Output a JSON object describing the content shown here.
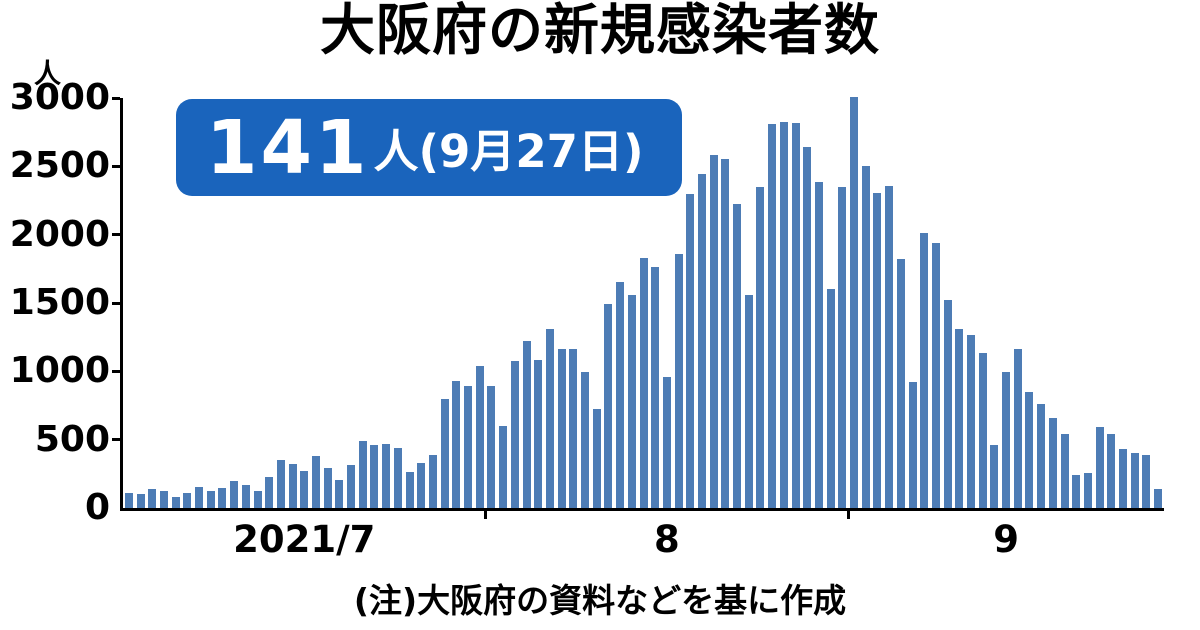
{
  "title": "大阪府の新規感染者数",
  "y_axis": {
    "unit_label": "人"
  },
  "badge": {
    "value": "141",
    "suffix": "人(9月27日)"
  },
  "footer_note": "(注)大阪府の資料などを基に作成",
  "colors": {
    "bar": "#4d7cb5",
    "badge_bg": "#1a64bc",
    "badge_text": "#ffffff",
    "axis": "#000000",
    "text": "#000000",
    "background": "#ffffff"
  },
  "chart_data": {
    "type": "bar",
    "title": "大阪府の新規感染者数",
    "ylabel": "人",
    "xlabel": "",
    "ylim": [
      0,
      3000
    ],
    "yticks": [
      0,
      500,
      1000,
      1500,
      2000,
      2500,
      3000
    ],
    "grid": false,
    "legend": false,
    "annotation": "141人(9月27日)",
    "note": "(注)大阪府の資料などを基に作成",
    "x_months": [
      {
        "label": "2021/7",
        "daily_values": [
          108,
          104,
          140,
          123,
          77,
          108,
          151,
          125,
          143,
          200,
          167,
          123,
          226,
          349,
          324,
          274,
          380,
          290,
          207,
          313,
          491,
          461,
          471,
          440,
          261,
          327,
          385,
          798,
          932,
          890,
          1040
        ]
      },
      {
        "label": "8",
        "daily_values": [
          891,
          599,
          1079,
          1224,
          1085,
          1310,
          1161,
          1164,
          995,
          725,
          1490,
          1654,
          1561,
          1828,
          1763,
          962,
          1856,
          2296,
          2443,
          2586,
          2556,
          2221,
          1562,
          2347,
          2808,
          2827,
          2814,
          2641,
          2389,
          1604,
          2346
        ]
      },
      {
        "label": "9",
        "daily_values": [
          3004,
          2501,
          2305,
          2353,
          1820,
          924,
          2012,
          1941,
          1522,
          1307,
          1263,
          1135,
          458,
          997,
          1160,
          849,
          758,
          661,
          541,
          245,
          254,
          591,
          538,
          435,
          402,
          386,
          141
        ]
      }
    ]
  }
}
